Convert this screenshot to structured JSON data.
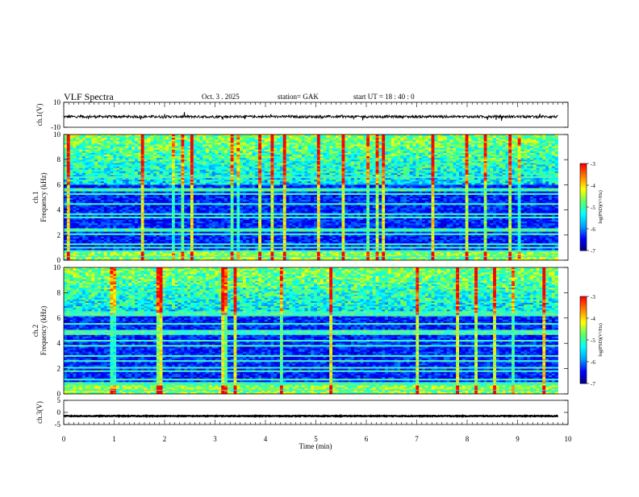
{
  "header": {
    "title": "VLF  Spectra",
    "date": "Oct. 3   . 2025",
    "station": "station= GAK",
    "start_ut": "start  UT  =    18 : 40 : 0"
  },
  "colorbar_label": "log(PSD)(V²/Hz)",
  "colorscale": [
    "#00007f",
    "#0000ff",
    "#00a0ff",
    "#00ffff",
    "#60ff60",
    "#ffff00",
    "#ff8000",
    "#ff0000",
    "#ffffff"
  ],
  "chart_data": [
    {
      "type": "line",
      "id": "ch1-waveform",
      "ylabel": "ch.1(V)",
      "ylim": [
        -10,
        10
      ],
      "yticks": [
        10,
        -10
      ],
      "xlim": [
        0,
        10
      ],
      "baseline": -1.5,
      "noise_amplitude": 1.0
    },
    {
      "type": "heatmap",
      "id": "ch1-spectrogram",
      "ylabel": "ch.1\nFrequency  (kHz)",
      "ylim": [
        0,
        10
      ],
      "yticks": [
        0,
        2,
        4,
        6,
        8,
        10
      ],
      "xlim": [
        0,
        9.8
      ],
      "clim": [
        -7,
        -3
      ],
      "cbar_ticks": [
        -3,
        -4,
        -5,
        -6,
        -7
      ],
      "bands_khz": [
        0.3,
        0.7,
        1.0,
        1.3,
        2.1,
        2.4,
        3.4,
        3.7,
        4.5,
        5.3,
        5.6,
        6.6
      ],
      "upper_activity_above_khz": 6.0
    },
    {
      "type": "heatmap",
      "id": "ch2-spectrogram",
      "ylabel": "ch.2\nFrequency  (kHz)",
      "ylim": [
        0,
        10
      ],
      "yticks": [
        0,
        2,
        4,
        6,
        8,
        10
      ],
      "xlim": [
        0,
        9.8
      ],
      "clim": [
        -7,
        -3
      ],
      "cbar_ticks": [
        -3,
        -4,
        -5,
        -6,
        -7
      ],
      "bands_khz": [
        0.3,
        0.8,
        1.1,
        1.8,
        2.1,
        2.6,
        3.0,
        3.8,
        4.2,
        4.8,
        5.0,
        5.5,
        6.2,
        6.4
      ],
      "upper_activity_above_khz": 6.3
    },
    {
      "type": "line",
      "id": "ch3-waveform",
      "ylabel": "ch.3(V)",
      "ylim": [
        -5,
        5
      ],
      "yticks": [
        5,
        0,
        -5
      ],
      "xlim": [
        0,
        10
      ],
      "baseline": -1.5,
      "noise_amplitude": 0.15
    }
  ],
  "xaxis": {
    "label": "Time  (min)",
    "ticks": [
      0,
      1,
      2,
      3,
      4,
      5,
      6,
      7,
      8,
      9,
      10
    ],
    "xlim": [
      0,
      10
    ]
  }
}
